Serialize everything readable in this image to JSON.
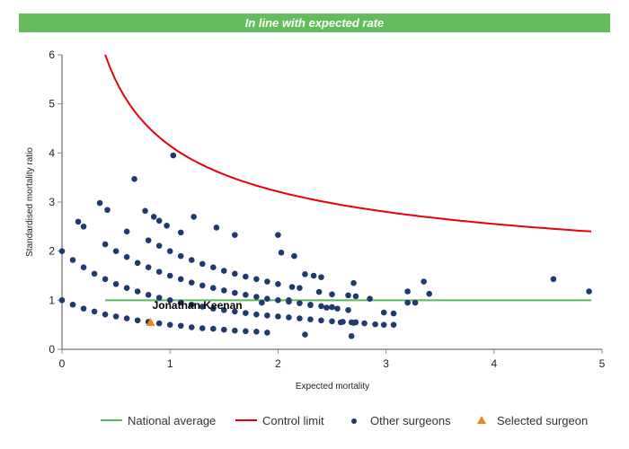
{
  "banner": {
    "text": "In line with expected rate",
    "color": "#64bc5c"
  },
  "chart_data": {
    "type": "scatter",
    "xlabel": "Expected mortality",
    "ylabel": "Standardised mortality ratio",
    "xlim": [
      0,
      5
    ],
    "ylim": [
      0,
      6
    ],
    "xticks": [
      "0",
      "1",
      "2",
      "3",
      "4",
      "5"
    ],
    "yticks": [
      "0",
      "1",
      "2",
      "3",
      "4",
      "5",
      "6"
    ],
    "grid": false,
    "legend_placement": "bottom",
    "legend": [
      "National average",
      "Control limit",
      "Other surgeons",
      "Selected surgeon"
    ],
    "colors": {
      "national": "#5cb85c",
      "control": "#e8000b",
      "other": "#1f3a6e",
      "selected": "#f5821f"
    },
    "national_average": {
      "name": "National average",
      "y": 1,
      "x_range": [
        0.4,
        4.9
      ]
    },
    "control_limit": {
      "name": "Control limit",
      "x_range": [
        0.4,
        4.9
      ],
      "y_start": 6,
      "y_end": 2.4
    },
    "selected_surgeon": {
      "name": "Selected surgeon",
      "label": "Jonathan Keenan",
      "x": 0.82,
      "y": 0.55
    },
    "other_surgeons": {
      "name": "Other surgeons",
      "points": [
        [
          0,
          1
        ],
        [
          0.1,
          0.91
        ],
        [
          0.2,
          0.83
        ],
        [
          0.3,
          0.77
        ],
        [
          0.4,
          0.71
        ],
        [
          0.5,
          0.67
        ],
        [
          0.6,
          0.63
        ],
        [
          0.7,
          0.59
        ],
        [
          0.8,
          0.56
        ],
        [
          0.9,
          0.53
        ],
        [
          1.0,
          0.5
        ],
        [
          1.1,
          0.48
        ],
        [
          1.2,
          0.45
        ],
        [
          1.3,
          0.43
        ],
        [
          1.4,
          0.42
        ],
        [
          1.5,
          0.4
        ],
        [
          1.6,
          0.38
        ],
        [
          1.7,
          0.37
        ],
        [
          1.8,
          0.36
        ],
        [
          1.9,
          0.34
        ],
        [
          0,
          2
        ],
        [
          0.1,
          1.82
        ],
        [
          0.2,
          1.67
        ],
        [
          0.3,
          1.54
        ],
        [
          0.4,
          1.43
        ],
        [
          0.5,
          1.33
        ],
        [
          0.6,
          1.25
        ],
        [
          0.7,
          1.18
        ],
        [
          0.8,
          1.11
        ],
        [
          0.9,
          1.05
        ],
        [
          1.0,
          1.0
        ],
        [
          1.1,
          0.95
        ],
        [
          1.2,
          0.91
        ],
        [
          1.3,
          0.87
        ],
        [
          1.4,
          0.83
        ],
        [
          1.5,
          0.8
        ],
        [
          1.6,
          0.77
        ],
        [
          1.7,
          0.74
        ],
        [
          1.8,
          0.71
        ],
        [
          1.9,
          0.69
        ],
        [
          2.0,
          0.67
        ],
        [
          2.1,
          0.65
        ],
        [
          2.2,
          0.63
        ],
        [
          2.3,
          0.61
        ],
        [
          2.4,
          0.59
        ],
        [
          2.5,
          0.57
        ],
        [
          2.6,
          0.56
        ],
        [
          2.7,
          0.54
        ],
        [
          2.8,
          0.53
        ],
        [
          2.9,
          0.51
        ],
        [
          0.4,
          2.14
        ],
        [
          0.5,
          2.0
        ],
        [
          0.6,
          1.88
        ],
        [
          0.7,
          1.76
        ],
        [
          0.8,
          1.67
        ],
        [
          0.9,
          1.58
        ],
        [
          1.0,
          1.5
        ],
        [
          1.1,
          1.43
        ],
        [
          1.2,
          1.36
        ],
        [
          1.3,
          1.3
        ],
        [
          1.4,
          1.25
        ],
        [
          1.5,
          1.2
        ],
        [
          1.6,
          1.15
        ],
        [
          1.7,
          1.11
        ],
        [
          1.8,
          1.07
        ],
        [
          1.9,
          1.03
        ],
        [
          2.0,
          1.0
        ],
        [
          2.1,
          0.97
        ],
        [
          2.2,
          0.94
        ],
        [
          2.3,
          0.91
        ],
        [
          2.4,
          0.88
        ],
        [
          2.5,
          0.86
        ],
        [
          0.8,
          2.22
        ],
        [
          0.9,
          2.11
        ],
        [
          1.0,
          2.0
        ],
        [
          1.1,
          1.9
        ],
        [
          1.2,
          1.82
        ],
        [
          1.3,
          1.74
        ],
        [
          1.4,
          1.67
        ],
        [
          1.5,
          1.6
        ],
        [
          1.6,
          1.54
        ],
        [
          1.7,
          1.48
        ],
        [
          1.8,
          1.43
        ],
        [
          1.9,
          1.38
        ],
        [
          2.0,
          1.33
        ],
        [
          0.15,
          2.6
        ],
        [
          0.2,
          2.5
        ],
        [
          0.35,
          2.98
        ],
        [
          0.42,
          2.84
        ],
        [
          0.6,
          2.4
        ],
        [
          0.67,
          3.47
        ],
        [
          0.77,
          2.82
        ],
        [
          0.85,
          2.7
        ],
        [
          0.9,
          2.62
        ],
        [
          0.97,
          2.52
        ],
        [
          1.03,
          3.95
        ],
        [
          1.1,
          2.38
        ],
        [
          1.22,
          2.7
        ],
        [
          1.43,
          2.48
        ],
        [
          1.6,
          2.33
        ],
        [
          2.0,
          2.33
        ],
        [
          2.03,
          1.97
        ],
        [
          2.15,
          1.9
        ],
        [
          2.25,
          1.53
        ],
        [
          2.33,
          1.5
        ],
        [
          2.4,
          1.47
        ],
        [
          2.13,
          1.27
        ],
        [
          2.2,
          1.25
        ],
        [
          2.38,
          1.17
        ],
        [
          2.65,
          1.1
        ],
        [
          2.7,
          1.35
        ],
        [
          2.72,
          1.08
        ],
        [
          2.85,
          1.03
        ],
        [
          2.58,
          0.55
        ],
        [
          2.65,
          0.8
        ],
        [
          2.68,
          0.55
        ],
        [
          2.72,
          0.55
        ],
        [
          2.68,
          0.27
        ],
        [
          2.25,
          0.3
        ],
        [
          2.98,
          0.75
        ],
        [
          3.07,
          0.73
        ],
        [
          2.98,
          0.5
        ],
        [
          3.07,
          0.5
        ],
        [
          3.2,
          1.18
        ],
        [
          3.2,
          0.95
        ],
        [
          3.27,
          0.95
        ],
        [
          3.35,
          1.38
        ],
        [
          3.4,
          1.13
        ],
        [
          4.55,
          1.43
        ],
        [
          4.88,
          1.18
        ],
        [
          2.5,
          1.12
        ],
        [
          2.3,
          0.9
        ],
        [
          2.55,
          0.83
        ],
        [
          2.45,
          0.85
        ],
        [
          2.1,
          1.0
        ],
        [
          1.85,
          0.95
        ]
      ]
    }
  }
}
